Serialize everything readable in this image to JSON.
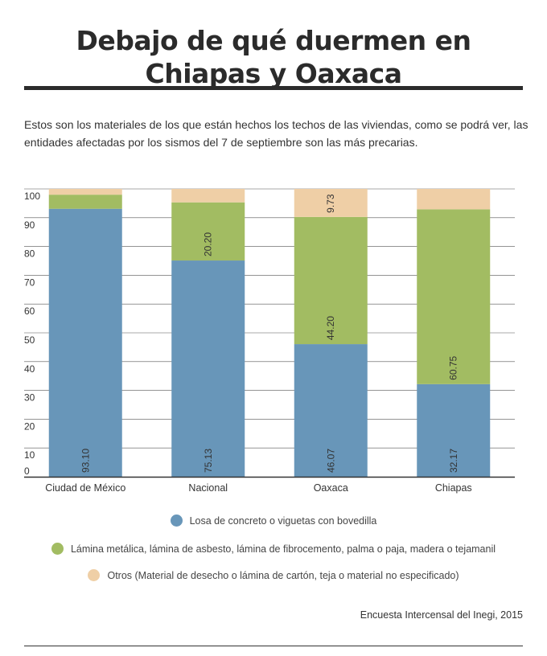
{
  "header": {
    "title": "Debajo de qué duermen en Chiapas y Oaxaca",
    "subtitle": "Estos son los materiales de los que están hechos los techos de las viviendas, como se podrá ver, las entidades afectadas por los sismos del 7 de septiembre son las más precarias."
  },
  "footer": {
    "source": "Encuesta Intercensal del Inegi, 2015"
  },
  "chart_data": {
    "type": "bar",
    "stacked": true,
    "categories": [
      "Ciudad de México",
      "Nacional",
      "Oaxaca",
      "Chiapas"
    ],
    "series": [
      {
        "name": "Losa de concreto o viguetas con bovedilla",
        "color": "#6896b9",
        "values": [
          93.1,
          75.13,
          46.07,
          32.17
        ],
        "labels": [
          "93.10",
          "75.13",
          "46.07",
          "32.17"
        ]
      },
      {
        "name": "Lámina metálica, lámina de asbesto, lámina de fibrocemento, palma o paja, madera o tejamanil",
        "color": "#a2bc62",
        "values": [
          4.9,
          20.2,
          44.2,
          60.75
        ],
        "labels": [
          "",
          "20.20",
          "44.20",
          "60.75"
        ]
      },
      {
        "name": "Otros (Material de desecho o lámina de cartón, teja o material no especificado)",
        "color": "#efcfa6",
        "values": [
          2.0,
          4.67,
          9.73,
          7.08
        ],
        "labels": [
          "",
          "",
          "9.73",
          ""
        ]
      }
    ],
    "yticks": [
      0,
      10,
      20,
      30,
      40,
      50,
      60,
      70,
      80,
      90,
      100
    ],
    "ylim": [
      0,
      100
    ],
    "grid": true,
    "legend_position": "bottom"
  }
}
